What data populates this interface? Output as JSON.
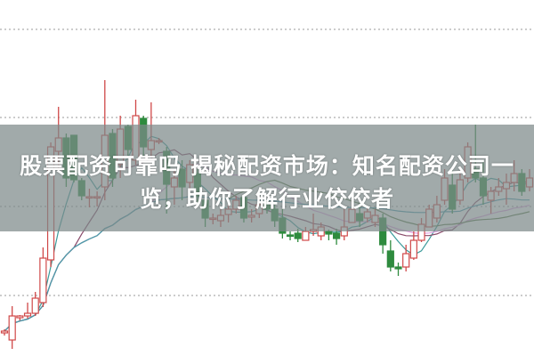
{
  "title": {
    "line1": "股票配资可靠吗 揭秘配资市场：知名配资公司一",
    "line2": "览，助你了解行业佼佼者"
  },
  "colors": {
    "up": "#d04848",
    "down": "#2e8b3e",
    "banner": "#7d8989",
    "ma": [
      "#3a9a9a",
      "#8a4a6a",
      "#e0a0e0",
      "#5a7a4a",
      "#4a9ab0"
    ]
  },
  "chart_data": {
    "type": "candlestick",
    "grid": "dotted-horizontal",
    "ma_periods": [
      5,
      10,
      20,
      30,
      60
    ],
    "candles": [
      [
        2.6,
        3.0,
        2.3,
        2.8
      ],
      [
        1.8,
        5.6,
        0.8,
        4.5
      ],
      [
        4.3,
        4.6,
        4.0,
        4.5
      ],
      [
        4.5,
        6.0,
        4.2,
        4.8
      ],
      [
        4.8,
        7.2,
        4.5,
        6.5
      ],
      [
        6.0,
        12.2,
        5.5,
        11.0
      ],
      [
        10.8,
        24.0,
        10.0,
        23.5
      ],
      [
        23.0,
        28.0,
        21.0,
        24.5
      ],
      [
        24.5,
        25.0,
        19.0,
        20.0
      ],
      [
        24.8,
        24.8,
        19.5,
        19.8
      ],
      [
        19.7,
        20.0,
        17.5,
        18.0
      ],
      [
        17.8,
        18.8,
        16.7,
        17.9
      ],
      [
        17.8,
        18.5,
        16.8,
        17.9
      ],
      [
        19.0,
        31.0,
        17.5,
        24.8
      ],
      [
        25.0,
        25.5,
        19.0,
        20.0
      ],
      [
        21.5,
        27.0,
        20.0,
        25.5
      ],
      [
        25.8,
        26.0,
        22.5,
        23.2
      ],
      [
        22.0,
        28.8,
        21.5,
        27.0
      ],
      [
        26.7,
        27.0,
        22.5,
        23.5
      ],
      [
        23.2,
        28.5,
        22.5,
        24.2
      ],
      [
        24.2,
        24.5,
        23.8,
        24.2
      ],
      [
        23.0,
        23.5,
        16.0,
        19.3
      ],
      [
        19.0,
        21.0,
        17.0,
        20.0
      ],
      [
        21.0,
        22.0,
        17.5,
        19.0
      ],
      [
        19.5,
        22.0,
        18.5,
        21.5
      ],
      [
        20.5,
        21.0,
        17.0,
        18.0
      ],
      [
        17.5,
        18.0,
        14.5,
        15.5
      ],
      [
        15.5,
        16.0,
        14.8,
        15.5
      ],
      [
        15.2,
        16.5,
        14.5,
        15.8
      ],
      [
        15.9,
        17.0,
        15.0,
        16.5
      ],
      [
        16.5,
        18.0,
        16.0,
        17.5
      ],
      [
        17.8,
        18.0,
        15.0,
        15.5
      ],
      [
        15.6,
        16.5,
        15.0,
        15.8
      ],
      [
        16.0,
        18.0,
        15.5,
        17.0
      ],
      [
        17.0,
        17.5,
        16.0,
        16.5
      ],
      [
        16.5,
        17.0,
        14.5,
        15.2
      ],
      [
        15.5,
        16.5,
        13.2,
        13.8
      ],
      [
        13.6,
        14.0,
        13.0,
        13.5
      ],
      [
        13.8,
        14.3,
        12.8,
        13.2
      ],
      [
        13.0,
        14.5,
        13.0,
        14.0
      ],
      [
        14.0,
        16.0,
        13.5,
        14.2
      ],
      [
        13.5,
        15.0,
        13.0,
        14.5
      ],
      [
        14.0,
        14.2,
        13.0,
        13.7
      ],
      [
        13.8,
        14.3,
        12.5,
        13.2
      ],
      [
        13.5,
        16.5,
        13.0,
        14.5
      ],
      [
        15.0,
        17.5,
        15.0,
        16.5
      ],
      [
        16.0,
        17.0,
        14.5,
        15.2
      ],
      [
        15.5,
        16.8,
        15.0,
        16.2
      ],
      [
        15.0,
        16.5,
        14.5,
        15.8
      ],
      [
        15.5,
        16.0,
        11.5,
        12.5
      ],
      [
        11.8,
        13.0,
        9.5,
        10.0
      ],
      [
        10.0,
        10.5,
        9.0,
        9.8
      ],
      [
        10.0,
        12.5,
        9.5,
        11.5
      ],
      [
        11.0,
        14.0,
        10.8,
        13.0
      ],
      [
        13.0,
        15.5,
        12.8,
        14.8
      ],
      [
        14.5,
        17.0,
        14.5,
        16.5
      ],
      [
        15.5,
        18.0,
        15.0,
        17.0
      ],
      [
        17.5,
        21.0,
        17.0,
        20.0
      ],
      [
        19.2,
        21.0,
        16.0,
        16.5
      ],
      [
        17.5,
        20.5,
        17.0,
        19.8
      ],
      [
        20.0,
        24.0,
        19.5,
        23.5
      ],
      [
        21.0,
        26.0,
        19.5,
        20.0
      ],
      [
        20.0,
        22.0,
        17.0,
        18.0
      ],
      [
        17.5,
        19.0,
        16.0,
        18.5
      ],
      [
        18.5,
        20.0,
        18.0,
        19.0
      ],
      [
        18.8,
        20.5,
        17.0,
        19.5
      ],
      [
        19.5,
        22.0,
        18.5,
        20.5
      ],
      [
        20.5,
        21.0,
        18.0,
        18.5
      ],
      [
        19.0,
        21.0,
        18.5,
        20.0
      ]
    ]
  }
}
